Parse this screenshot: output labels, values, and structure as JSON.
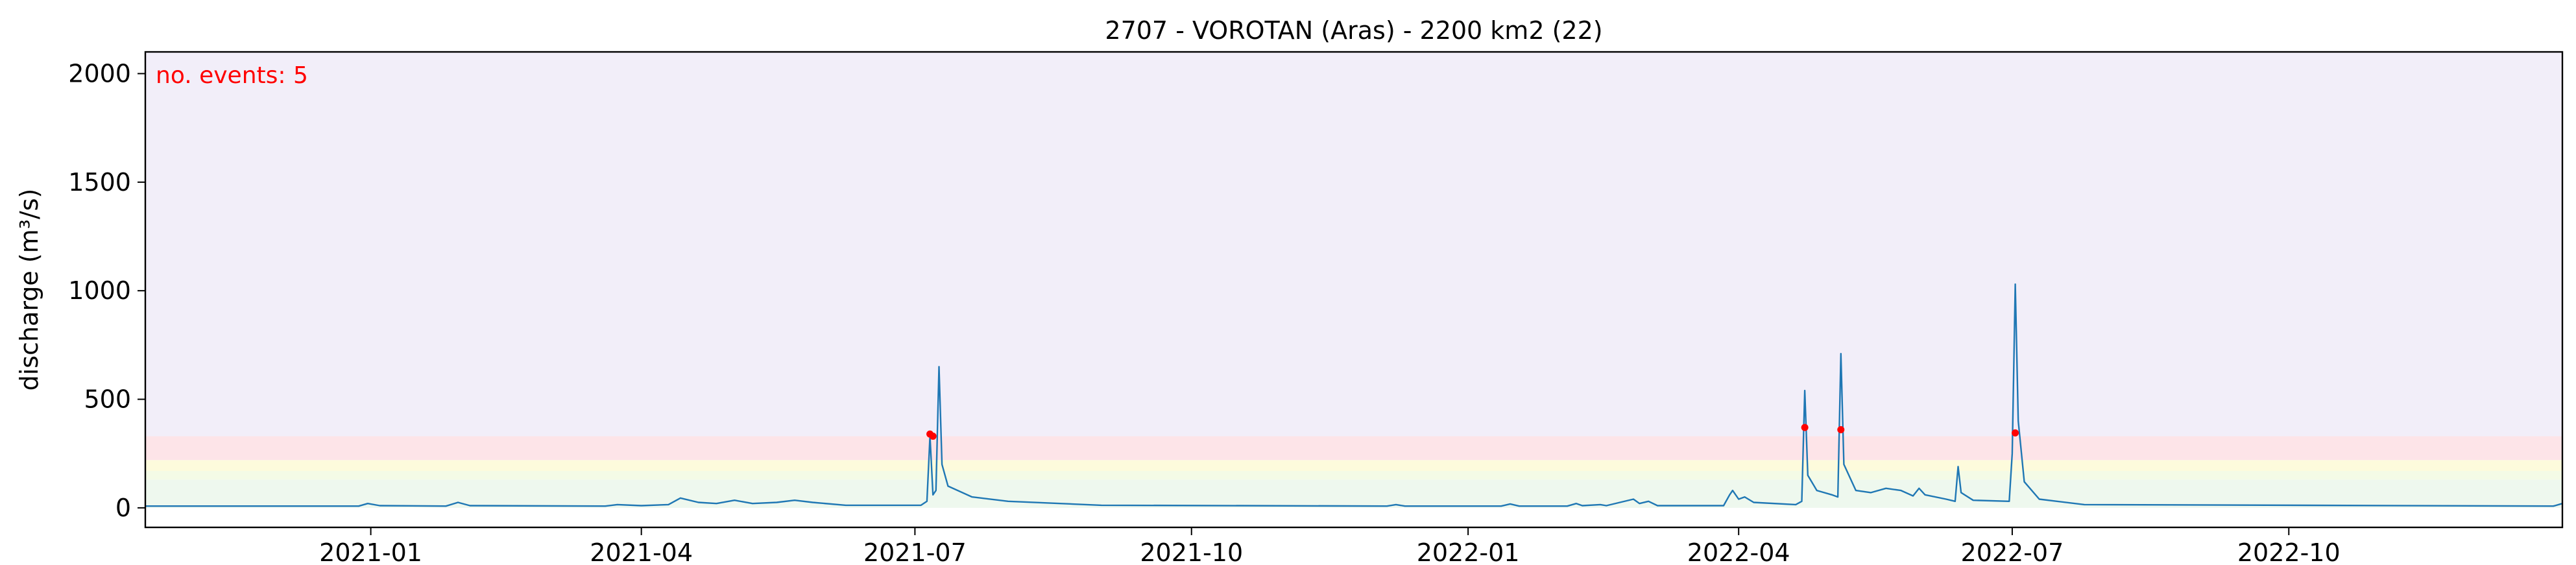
{
  "chart_data": {
    "type": "line",
    "title": "2707 - VOROTAN (Aras) - 2200 km2 (22)",
    "xlabel": "",
    "ylabel": "discharge (m³/s)",
    "xlim": [
      "2020-10-18",
      "2022-12-31"
    ],
    "ylim": [
      -90,
      2100
    ],
    "x_ticks": [
      "2021-01",
      "2021-04",
      "2021-07",
      "2021-10",
      "2022-01",
      "2022-04",
      "2022-07",
      "2022-10"
    ],
    "y_ticks": [
      0,
      500,
      1000,
      1500,
      2000
    ],
    "grid": false,
    "annotation": {
      "text": "no. events: 5",
      "color": "#ff0000"
    },
    "threshold_bands": [
      {
        "from": 0,
        "to": 130,
        "color": "#eef8ee"
      },
      {
        "from": 130,
        "to": 170,
        "color": "#f4fbe6"
      },
      {
        "from": 170,
        "to": 220,
        "color": "#fdfbdc"
      },
      {
        "from": 220,
        "to": 330,
        "color": "#fde4e8"
      },
      {
        "from": 330,
        "to": 2100,
        "color": "#f2eef9"
      }
    ],
    "series": [
      {
        "color": "#1f77b4",
        "points": [
          [
            "2020-10-18",
            8
          ],
          [
            "2020-12-28",
            8
          ],
          [
            "2020-12-31",
            20
          ],
          [
            "2021-01-04",
            10
          ],
          [
            "2021-01-26",
            8
          ],
          [
            "2021-01-30",
            25
          ],
          [
            "2021-02-03",
            10
          ],
          [
            "2021-03-20",
            8
          ],
          [
            "2021-03-24",
            15
          ],
          [
            "2021-04-01",
            10
          ],
          [
            "2021-04-10",
            15
          ],
          [
            "2021-04-14",
            45
          ],
          [
            "2021-04-20",
            25
          ],
          [
            "2021-04-26",
            20
          ],
          [
            "2021-05-02",
            35
          ],
          [
            "2021-05-08",
            20
          ],
          [
            "2021-05-16",
            25
          ],
          [
            "2021-05-22",
            35
          ],
          [
            "2021-05-28",
            25
          ],
          [
            "2021-06-08",
            12
          ],
          [
            "2021-07-03",
            12
          ],
          [
            "2021-07-05",
            30
          ],
          [
            "2021-07-06",
            330
          ],
          [
            "2021-07-07",
            60
          ],
          [
            "2021-07-08",
            80
          ],
          [
            "2021-07-09",
            650
          ],
          [
            "2021-07-10",
            200
          ],
          [
            "2021-07-12",
            100
          ],
          [
            "2021-07-20",
            50
          ],
          [
            "2021-08-01",
            30
          ],
          [
            "2021-09-01",
            12
          ],
          [
            "2021-12-05",
            8
          ],
          [
            "2021-12-08",
            15
          ],
          [
            "2021-12-11",
            8
          ],
          [
            "2022-01-12",
            8
          ],
          [
            "2022-01-15",
            18
          ],
          [
            "2022-01-18",
            8
          ],
          [
            "2022-02-03",
            8
          ],
          [
            "2022-02-06",
            20
          ],
          [
            "2022-02-08",
            10
          ],
          [
            "2022-02-14",
            15
          ],
          [
            "2022-02-16",
            10
          ],
          [
            "2022-02-25",
            40
          ],
          [
            "2022-02-27",
            20
          ],
          [
            "2022-03-02",
            30
          ],
          [
            "2022-03-05",
            10
          ],
          [
            "2022-03-27",
            10
          ],
          [
            "2022-03-29",
            60
          ],
          [
            "2022-03-30",
            80
          ],
          [
            "2022-04-01",
            40
          ],
          [
            "2022-04-03",
            50
          ],
          [
            "2022-04-06",
            25
          ],
          [
            "2022-04-20",
            15
          ],
          [
            "2022-04-22",
            30
          ],
          [
            "2022-04-23",
            540
          ],
          [
            "2022-04-24",
            150
          ],
          [
            "2022-04-27",
            80
          ],
          [
            "2022-05-02",
            60
          ],
          [
            "2022-05-04",
            50
          ],
          [
            "2022-05-05",
            710
          ],
          [
            "2022-05-06",
            200
          ],
          [
            "2022-05-10",
            80
          ],
          [
            "2022-05-15",
            70
          ],
          [
            "2022-05-20",
            90
          ],
          [
            "2022-05-25",
            80
          ],
          [
            "2022-05-29",
            55
          ],
          [
            "2022-05-31",
            90
          ],
          [
            "2022-06-02",
            60
          ],
          [
            "2022-06-09",
            40
          ],
          [
            "2022-06-12",
            30
          ],
          [
            "2022-06-13",
            190
          ],
          [
            "2022-06-14",
            70
          ],
          [
            "2022-06-18",
            35
          ],
          [
            "2022-06-30",
            30
          ],
          [
            "2022-07-01",
            250
          ],
          [
            "2022-07-02",
            1030
          ],
          [
            "2022-07-03",
            400
          ],
          [
            "2022-07-05",
            120
          ],
          [
            "2022-07-10",
            40
          ],
          [
            "2022-07-25",
            15
          ],
          [
            "2022-12-28",
            8
          ],
          [
            "2022-12-31",
            20
          ]
        ]
      }
    ],
    "events": [
      {
        "date": "2021-07-06",
        "value": 340
      },
      {
        "date": "2021-07-07",
        "value": 330
      },
      {
        "date": "2022-04-23",
        "value": 370
      },
      {
        "date": "2022-05-05",
        "value": 360
      },
      {
        "date": "2022-07-02",
        "value": 345
      }
    ]
  }
}
